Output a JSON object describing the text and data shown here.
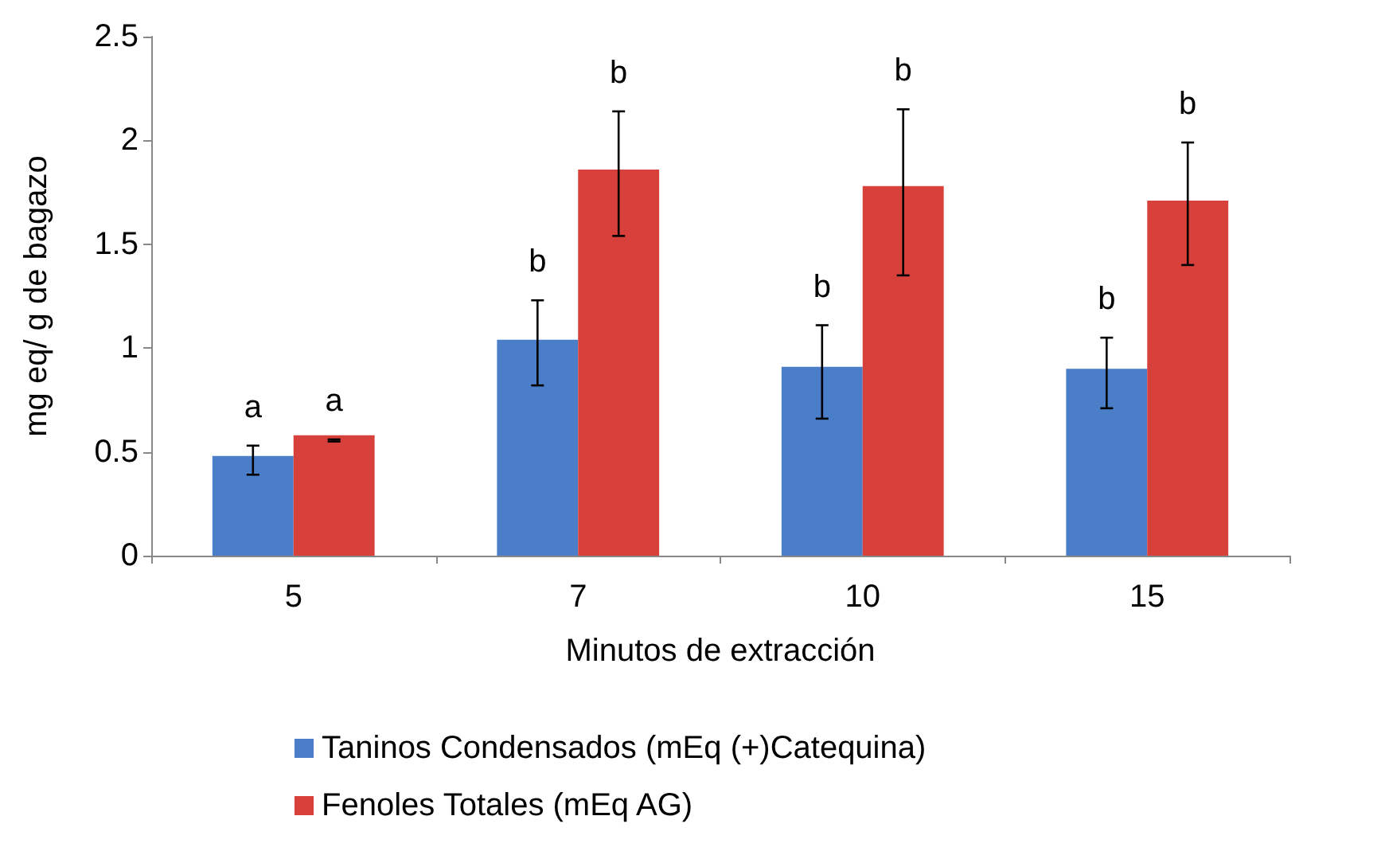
{
  "chart_data": {
    "type": "bar",
    "xlabel": "Minutos de extracción",
    "ylabel": "mg eq/ g de bagazo",
    "categories": [
      "5",
      "7",
      "10",
      "15"
    ],
    "series": [
      {
        "name": "Taninos Condensados (mEq (+)Catequina)",
        "color": "#4a7ec8",
        "values": [
          0.48,
          1.04,
          0.91,
          0.9
        ],
        "errors": [
          [
            0.39,
            0.53
          ],
          [
            0.82,
            1.23
          ],
          [
            0.66,
            1.11
          ],
          [
            0.71,
            1.05
          ]
        ],
        "value_labels": [
          "a",
          "b",
          "b",
          "b"
        ]
      },
      {
        "name": "Fenoles Totales (mEq AG)",
        "color": "#d8403c",
        "values": [
          0.58,
          1.86,
          1.78,
          1.71
        ],
        "errors": [
          [
            0.55,
            0.56
          ],
          [
            1.54,
            2.14
          ],
          [
            1.35,
            2.15
          ],
          [
            1.4,
            1.99
          ]
        ],
        "value_labels": [
          "a",
          "b",
          "b",
          "b"
        ]
      }
    ],
    "ylim": [
      0,
      2.5
    ],
    "yticks": [
      0,
      0.5,
      1,
      1.5,
      2,
      2.5
    ],
    "grid": false,
    "legend": "bottom"
  }
}
